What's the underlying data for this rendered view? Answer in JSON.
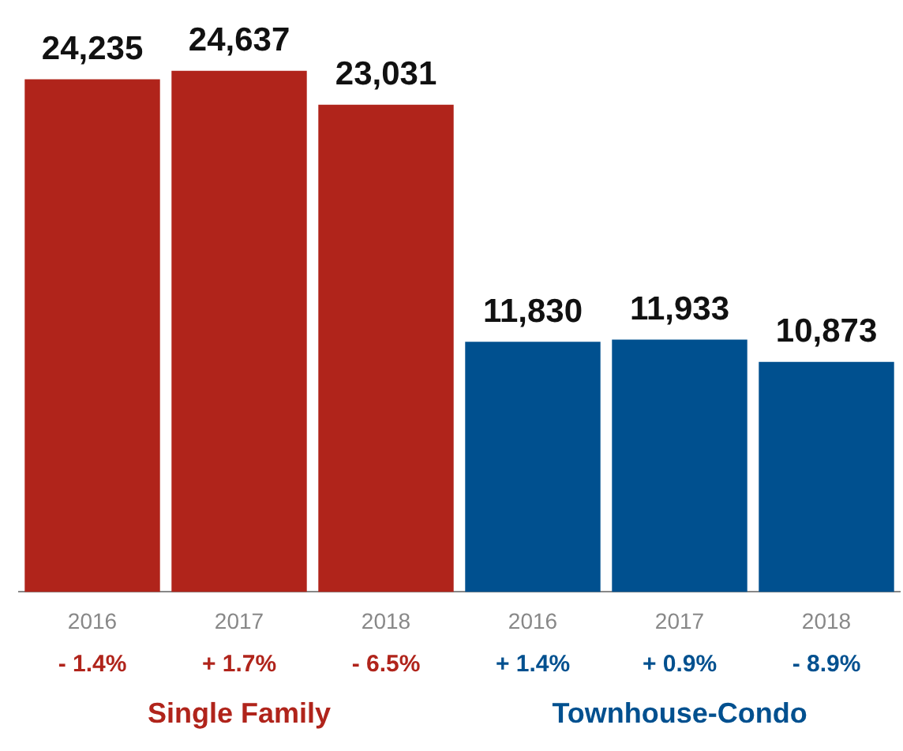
{
  "chart_data": {
    "type": "bar",
    "categories": [
      "2016",
      "2017",
      "2018",
      "2016",
      "2017",
      "2018"
    ],
    "stacked": true,
    "legend": false,
    "grid": false,
    "series": [
      {
        "name": "Single Family",
        "color": "#b0241b",
        "values": [
          24235,
          24637,
          23031,
          null,
          null,
          null
        ],
        "value_labels": [
          "24,235",
          "24,637",
          "23,031",
          null,
          null,
          null
        ]
      },
      {
        "name": "Townhouse-Condo",
        "color": "#00508f",
        "values": [
          null,
          null,
          null,
          11830,
          11933,
          10873
        ],
        "value_labels": [
          null,
          null,
          null,
          "11,830",
          "11,933",
          "10,873"
        ]
      }
    ],
    "annotations": [
      "- 1.4%",
      "+ 1.7%",
      "- 6.5%",
      "+ 1.4%",
      "+ 0.9%",
      "- 8.9%"
    ]
  }
}
